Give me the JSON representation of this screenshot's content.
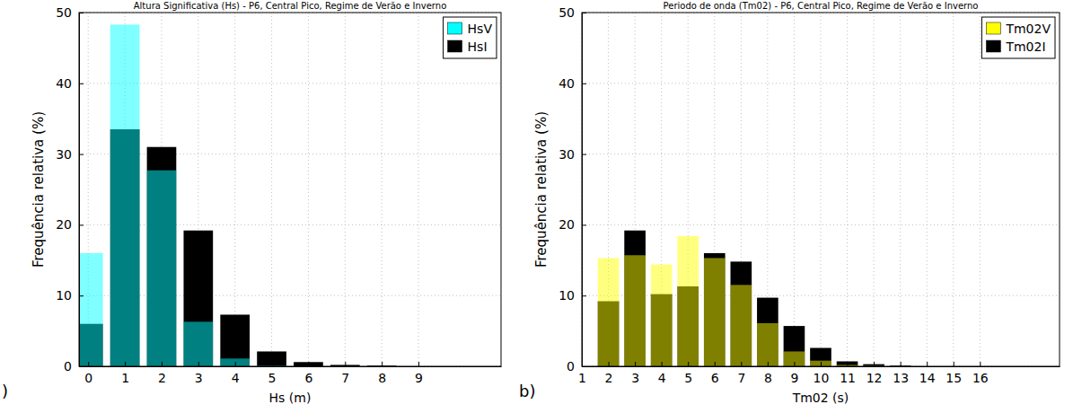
{
  "chart_data": [
    {
      "type": "bar",
      "title": "Altura Significativa (Hs) - P6, Central Pico, Regime de Verão e Inverno",
      "x_label": "Hs (m)",
      "y_label": "Frequência relativa (%)",
      "annotations": [
        ")"
      ],
      "x": [
        0,
        1,
        2,
        3,
        4,
        5,
        6,
        7,
        8,
        9
      ],
      "series": [
        {
          "name": "HsV",
          "color": "#00ffff",
          "values": [
            16,
            48.3,
            27.7,
            6.3,
            1.1,
            0.1,
            0,
            0,
            0,
            0
          ]
        },
        {
          "name": "HsI",
          "color": "#000000",
          "values": [
            6,
            33.5,
            31,
            19.2,
            7.3,
            2.1,
            0.6,
            0.2,
            0.1,
            0
          ]
        }
      ],
      "xlim": [
        -0.25,
        11.25
      ],
      "xticks": [
        0,
        1,
        2,
        3,
        4,
        5,
        6,
        7,
        8,
        9
      ],
      "ylim": [
        0,
        50
      ],
      "yticks": [
        0,
        10,
        20,
        30,
        40,
        50
      ],
      "grid": true,
      "legend": "top-right",
      "stacked": false
    },
    {
      "type": "bar",
      "title": "Periodo de onda (Tm02) - P6, Central Pico, Regime de Verão e Inverno",
      "x_label": "Tm02 (s)",
      "y_label": "Frequência relativa (%)",
      "annotations": [
        "b)"
      ],
      "x": [
        2,
        3,
        4,
        5,
        6,
        7,
        8,
        9,
        10,
        11,
        12,
        13
      ],
      "series": [
        {
          "name": "Tm02V",
          "color": "#ffff00",
          "values": [
            15.3,
            15.7,
            14.4,
            18.4,
            15.3,
            11.5,
            6.1,
            2.1,
            0.8,
            0.2,
            0.1,
            0
          ]
        },
        {
          "name": "Tm02I",
          "color": "#000000",
          "values": [
            9.2,
            19.2,
            10.2,
            11.3,
            16,
            14.8,
            9.7,
            5.7,
            2.6,
            0.7,
            0.3,
            0.1
          ]
        }
      ],
      "xlim": [
        1,
        19
      ],
      "xticks": [
        1,
        2,
        3,
        4,
        5,
        6,
        7,
        8,
        9,
        10,
        11,
        12,
        13,
        14,
        15,
        16
      ],
      "ylim": [
        0,
        50
      ],
      "yticks": [
        0,
        10,
        20,
        30,
        40,
        50
      ],
      "grid": true,
      "legend": "top-right",
      "stacked": false
    }
  ]
}
